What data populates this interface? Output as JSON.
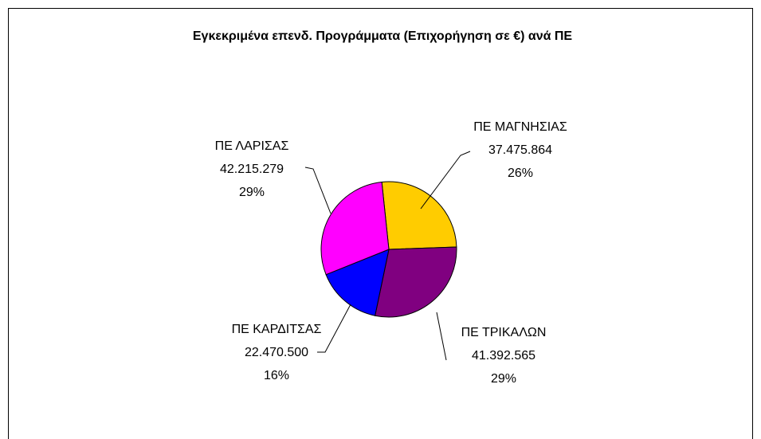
{
  "chart_data": {
    "type": "pie",
    "title": "Εγκεκριμένα επενδ. Προγράμματα (Επιχορήγηση σε €) ανά ΠΕ",
    "categories": [
      "ΠΕ ΜΑΓΝΗΣΙΑΣ",
      "ΠΕ ΤΡΙΚΑΛΩΝ",
      "ΠΕ ΚΑΡΔΙΤΣΑΣ",
      "ΠΕ ΛΑΡΙΣΑΣ"
    ],
    "values": [
      37475864,
      41392565,
      22470500,
      42215279
    ],
    "value_labels": [
      "37.475.864",
      "41.392.565",
      "22.470.500",
      "42.215.279"
    ],
    "percent_labels": [
      "26%",
      "29%",
      "16%",
      "29%"
    ],
    "colors": [
      "#ffcc00",
      "#800080",
      "#0000ff",
      "#ff00ff"
    ]
  }
}
